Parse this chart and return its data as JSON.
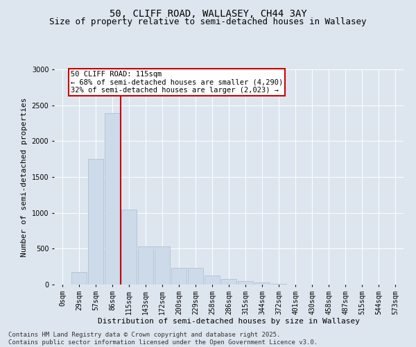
{
  "title1": "50, CLIFF ROAD, WALLASEY, CH44 3AY",
  "title2": "Size of property relative to semi-detached houses in Wallasey",
  "xlabel": "Distribution of semi-detached houses by size in Wallasey",
  "ylabel": "Number of semi-detached properties",
  "bar_color": "#ccdaea",
  "bar_edge_color": "#aabccc",
  "categories": [
    "0sqm",
    "29sqm",
    "57sqm",
    "86sqm",
    "115sqm",
    "143sqm",
    "172sqm",
    "200sqm",
    "229sqm",
    "258sqm",
    "286sqm",
    "315sqm",
    "344sqm",
    "372sqm",
    "401sqm",
    "430sqm",
    "458sqm",
    "487sqm",
    "515sqm",
    "544sqm",
    "573sqm"
  ],
  "values": [
    0,
    170,
    1750,
    2390,
    1050,
    530,
    530,
    230,
    230,
    130,
    80,
    50,
    25,
    10,
    0,
    0,
    0,
    0,
    0,
    0,
    0
  ],
  "property_bin_index": 4,
  "annotation_text": "50 CLIFF ROAD: 115sqm\n← 68% of semi-detached houses are smaller (4,290)\n32% of semi-detached houses are larger (2,023) →",
  "annotation_box_color": "#ffffff",
  "annotation_border_color": "#cc0000",
  "vline_color": "#cc0000",
  "ylim": [
    0,
    3000
  ],
  "yticks": [
    0,
    500,
    1000,
    1500,
    2000,
    2500,
    3000
  ],
  "background_color": "#dde6ef",
  "plot_bg_color": "#dde6ef",
  "footer_text": "Contains HM Land Registry data © Crown copyright and database right 2025.\nContains public sector information licensed under the Open Government Licence v3.0.",
  "title1_fontsize": 10,
  "title2_fontsize": 9,
  "xlabel_fontsize": 8,
  "ylabel_fontsize": 8,
  "tick_fontsize": 7,
  "annotation_fontsize": 7.5,
  "footer_fontsize": 6.5
}
